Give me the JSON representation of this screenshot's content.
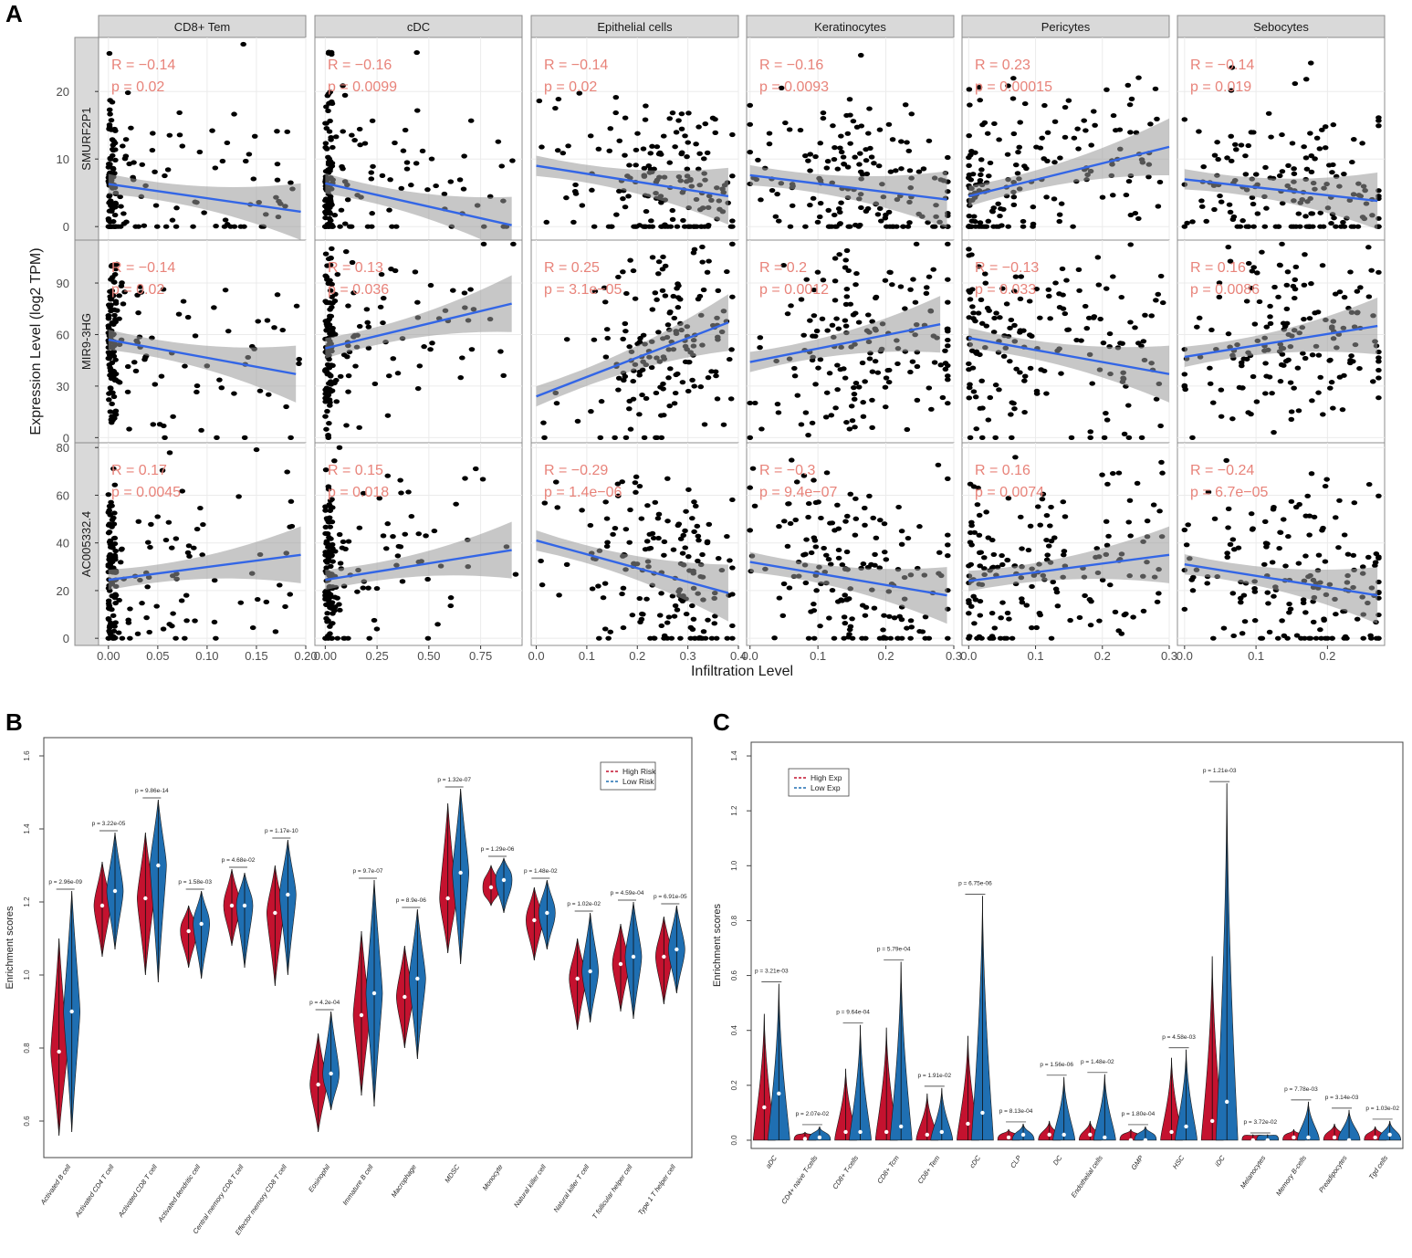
{
  "panel_letters": {
    "a": "A",
    "b": "B",
    "c": "C"
  },
  "colors": {
    "strip_bg": "#d9d9d9",
    "panel_border": "#8c8c8c",
    "grid": "#ebebeb",
    "point": "#000000",
    "fit_line": "#3366e6",
    "ribbon": "#999999",
    "annotation": "#e8837a",
    "high": "#c4122f",
    "low": "#1f6fb2"
  },
  "chart_data": [
    {
      "id": "A",
      "type": "scatter",
      "title": "",
      "xlabel": "Infiltration Level",
      "ylabel": "Expression Level (log2 TPM)",
      "columns": [
        "CD8+ Tem",
        "cDC",
        "Epithelial cells",
        "Keratinocytes",
        "Pericytes",
        "Sebocytes"
      ],
      "rows": [
        "SMURF2P1",
        "MIR9-3HG",
        "AC005332.4"
      ],
      "x_axes": [
        {
          "xlim": [
            -0.01,
            0.2
          ],
          "ticks": [
            0,
            0.05,
            0.1,
            0.15,
            0.2
          ],
          "labels": [
            "0.00",
            "0.05",
            "0.10",
            "0.15",
            "0.20"
          ]
        },
        {
          "xlim": [
            -0.05,
            0.95
          ],
          "ticks": [
            0,
            0.25,
            0.5,
            0.75
          ],
          "labels": [
            "0.00",
            "0.25",
            "0.50",
            "0.75"
          ]
        },
        {
          "xlim": [
            -0.01,
            0.4
          ],
          "ticks": [
            0,
            0.1,
            0.2,
            0.3,
            0.4
          ],
          "labels": [
            "0.0",
            "0.1",
            "0.2",
            "0.3",
            "0.4"
          ]
        },
        {
          "xlim": [
            -0.005,
            0.3
          ],
          "ticks": [
            0,
            0.1,
            0.2,
            0.3
          ],
          "labels": [
            "0.0",
            "0.1",
            "0.2",
            "0.3"
          ]
        },
        {
          "xlim": [
            -0.01,
            0.3
          ],
          "ticks": [
            0,
            0.1,
            0.2,
            0.3
          ],
          "labels": [
            "0.0",
            "0.1",
            "0.2",
            "0.3"
          ]
        },
        {
          "xlim": [
            -0.01,
            0.28
          ],
          "ticks": [
            0,
            0.1,
            0.2
          ],
          "labels": [
            "0.0",
            "0.1",
            "0.2"
          ]
        }
      ],
      "y_axes": [
        {
          "ylim": [
            -2,
            28
          ],
          "ticks": [
            0,
            10,
            20
          ],
          "labels": [
            "0",
            "10",
            "20"
          ]
        },
        {
          "ylim": [
            -3,
            115
          ],
          "ticks": [
            0,
            30,
            60,
            90
          ],
          "labels": [
            "0",
            "30",
            "60",
            "90"
          ]
        },
        {
          "ylim": [
            -3,
            82
          ],
          "ticks": [
            0,
            20,
            40,
            60,
            80
          ],
          "labels": [
            "0",
            "20",
            "40",
            "60",
            "80"
          ]
        }
      ],
      "cells": [
        {
          "row": 0,
          "col": 0,
          "R": "R = −0.14",
          "p": "p = 0.02",
          "fit": [
            0.0,
            6.3,
            0.195,
            2.2
          ]
        },
        {
          "row": 0,
          "col": 1,
          "R": "R = −0.16",
          "p": "p = 0.0099",
          "fit": [
            0.0,
            6.4,
            0.9,
            0.2
          ]
        },
        {
          "row": 0,
          "col": 2,
          "R": "R = −0.14",
          "p": "p = 0.02",
          "fit": [
            0.0,
            9.0,
            0.38,
            4.5
          ]
        },
        {
          "row": 0,
          "col": 3,
          "R": "R = −0.16",
          "p": "p = 0.0093",
          "fit": [
            0.0,
            7.6,
            0.29,
            4.0
          ]
        },
        {
          "row": 0,
          "col": 4,
          "R": "R = 0.23",
          "p": "p = 0.00015",
          "fit": [
            0.0,
            4.5,
            0.3,
            11.8
          ]
        },
        {
          "row": 0,
          "col": 5,
          "R": "R = −0.14",
          "p": "p = 0.019",
          "fit": [
            0.0,
            7.0,
            0.27,
            3.8
          ]
        },
        {
          "row": 1,
          "col": 0,
          "R": "R = −0.14",
          "p": "p = 0.02",
          "fit": [
            0.0,
            57,
            0.19,
            37
          ]
        },
        {
          "row": 1,
          "col": 1,
          "R": "R = 0.13",
          "p": "p = 0.036",
          "fit": [
            0.0,
            52,
            0.9,
            78
          ]
        },
        {
          "row": 1,
          "col": 2,
          "R": "R = 0.25",
          "p": "p = 3.1e−05",
          "fit": [
            0.0,
            24,
            0.38,
            67
          ]
        },
        {
          "row": 1,
          "col": 3,
          "R": "R = 0.2",
          "p": "p = 0.0012",
          "fit": [
            0.0,
            44,
            0.28,
            66
          ]
        },
        {
          "row": 1,
          "col": 4,
          "R": "R = −0.13",
          "p": "p = 0.033",
          "fit": [
            0.0,
            58,
            0.3,
            37
          ]
        },
        {
          "row": 1,
          "col": 5,
          "R": "R = 0.16",
          "p": "p = 0.0086",
          "fit": [
            0.0,
            47,
            0.27,
            65
          ]
        },
        {
          "row": 2,
          "col": 0,
          "R": "R = 0.17",
          "p": "p = 0.0045",
          "fit": [
            0.0,
            24.5,
            0.195,
            35
          ]
        },
        {
          "row": 2,
          "col": 1,
          "R": "R = 0.15",
          "p": "p = 0.018",
          "fit": [
            0.0,
            24.5,
            0.9,
            37
          ]
        },
        {
          "row": 2,
          "col": 2,
          "R": "R = −0.29",
          "p": "p = 1.4e−06",
          "fit": [
            0.0,
            41,
            0.38,
            19
          ]
        },
        {
          "row": 2,
          "col": 3,
          "R": "R = −0.3",
          "p": "p = 9.4e−07",
          "fit": [
            0.0,
            32,
            0.29,
            18
          ]
        },
        {
          "row": 2,
          "col": 4,
          "R": "R = 0.16",
          "p": "p = 0.0074",
          "fit": [
            0.0,
            24,
            0.3,
            35
          ]
        },
        {
          "row": 2,
          "col": 5,
          "R": "R = −0.24",
          "p": "p = 6.7e−05",
          "fit": [
            0.0,
            31,
            0.27,
            18
          ]
        }
      ]
    },
    {
      "id": "B",
      "type": "violin",
      "ylabel": "Enrichment scores",
      "ylim": [
        0.5,
        1.65
      ],
      "yticks": [
        0.6,
        0.8,
        1.0,
        1.2,
        1.4,
        1.6
      ],
      "ytick_labels": [
        "0.6",
        "0.8",
        "1.0",
        "1.2",
        "1.4",
        "1.6"
      ],
      "legend": [
        "High Risk",
        "Low Risk"
      ],
      "categories": [
        "Activated B cell",
        "Activated CD4 T cell",
        "Activated CD8 T cell",
        "Activated dendritic cell",
        "Central memory CD8 T cell",
        "Effector memory CD8 T cell",
        "Eosinophil",
        "Immature  B cell",
        "Macrophage",
        "MDSC",
        "Monocyte",
        "Natural killer cell",
        "Natural killer T cell",
        "T follicular helper cell",
        "Type 1 T helper cell"
      ],
      "pvalues": [
        "p = 2.96e-09",
        "p = 3.22e-05",
        "p = 9.86e-14",
        "p = 1.58e-03",
        "p = 4.68e-02",
        "p = 1.17e-10",
        "p = 4.2e-04",
        "p = 9.7e-07",
        "p = 8.9e-06",
        "p = 1.32e-07",
        "p = 1.29e-06",
        "p = 1.48e-02",
        "p = 1.02e-02",
        "p = 4.59e-04",
        "p = 6.91e-05"
      ],
      "high_median": [
        0.79,
        1.19,
        1.21,
        1.12,
        1.19,
        1.17,
        0.7,
        0.89,
        0.94,
        1.21,
        1.24,
        1.15,
        0.99,
        1.03,
        1.05
      ],
      "low_median": [
        0.9,
        1.23,
        1.3,
        1.14,
        1.19,
        1.22,
        0.73,
        0.95,
        0.99,
        1.28,
        1.26,
        1.17,
        1.01,
        1.05,
        1.07
      ],
      "high_range": [
        [
          0.56,
          1.1
        ],
        [
          1.05,
          1.31
        ],
        [
          1.0,
          1.39
        ],
        [
          1.02,
          1.19
        ],
        [
          1.08,
          1.29
        ],
        [
          0.97,
          1.3
        ],
        [
          0.57,
          0.84
        ],
        [
          0.67,
          1.12
        ],
        [
          0.8,
          1.08
        ],
        [
          1.06,
          1.47
        ],
        [
          1.19,
          1.3
        ],
        [
          1.04,
          1.24
        ],
        [
          0.85,
          1.1
        ],
        [
          0.9,
          1.14
        ],
        [
          0.92,
          1.16
        ]
      ],
      "low_range": [
        [
          0.57,
          1.23
        ],
        [
          1.07,
          1.39
        ],
        [
          0.98,
          1.48
        ],
        [
          0.99,
          1.23
        ],
        [
          1.02,
          1.28
        ],
        [
          1.0,
          1.37
        ],
        [
          0.63,
          0.9
        ],
        [
          0.64,
          1.26
        ],
        [
          0.77,
          1.18
        ],
        [
          1.03,
          1.51
        ],
        [
          1.17,
          1.32
        ],
        [
          1.07,
          1.26
        ],
        [
          0.87,
          1.17
        ],
        [
          0.88,
          1.2
        ],
        [
          0.95,
          1.19
        ]
      ]
    },
    {
      "id": "C",
      "type": "violin",
      "ylabel": "Enrichment scores",
      "ylim": [
        -0.03,
        1.45
      ],
      "yticks": [
        0.0,
        0.2,
        0.4,
        0.6,
        0.8,
        1.0,
        1.2,
        1.4
      ],
      "ytick_labels": [
        "0.0",
        "0.2",
        "0.4",
        "0.6",
        "0.8",
        "1.0",
        "1.2",
        "1.4"
      ],
      "legend": [
        "High Exp",
        "Low Exp"
      ],
      "categories": [
        "aDC",
        "CD4+ naive T-cells",
        "CD8+ T-cells",
        "CD8+ Tcm",
        "CD8+ Tem",
        "cDC",
        "CLP",
        "DC",
        "Endothelial cells",
        "GMP",
        "HSC",
        "iDC",
        "Melanocytes",
        "Memory B-cells",
        "Preadipocytes",
        "Tgd cells"
      ],
      "pvalues": [
        "p = 3.21e-03",
        "p = 2.07e-02",
        "p = 9.64e-04",
        "p = 5.79e-04",
        "p = 1.91e-02",
        "p = 6.75e-06",
        "p = 8.13e-04",
        "p = 1.56e-06",
        "p = 1.48e-02",
        "p = 1.80e-04",
        "p = 4.58e-03",
        "p = 1.21e-03",
        "p = 3.72e-02",
        "p = 7.78e-03",
        "p = 3.14e-03",
        "p = 1.03e-02"
      ],
      "high_median": [
        0.12,
        0.005,
        0.03,
        0.03,
        0.02,
        0.06,
        0.01,
        0.02,
        0.02,
        0.0,
        0.03,
        0.07,
        0.0,
        0.01,
        0.01,
        0.01
      ],
      "low_median": [
        0.17,
        0.01,
        0.03,
        0.05,
        0.03,
        0.1,
        0.02,
        0.02,
        0.01,
        0.0,
        0.05,
        0.14,
        0.0,
        0.01,
        0.0,
        0.02
      ],
      "high_max": [
        0.46,
        0.03,
        0.26,
        0.41,
        0.17,
        0.38,
        0.04,
        0.07,
        0.07,
        0.04,
        0.3,
        0.67,
        0.02,
        0.04,
        0.06,
        0.05
      ],
      "low_max": [
        0.57,
        0.05,
        0.42,
        0.65,
        0.19,
        0.89,
        0.06,
        0.23,
        0.24,
        0.05,
        0.33,
        1.3,
        0.02,
        0.14,
        0.11,
        0.07
      ]
    }
  ]
}
